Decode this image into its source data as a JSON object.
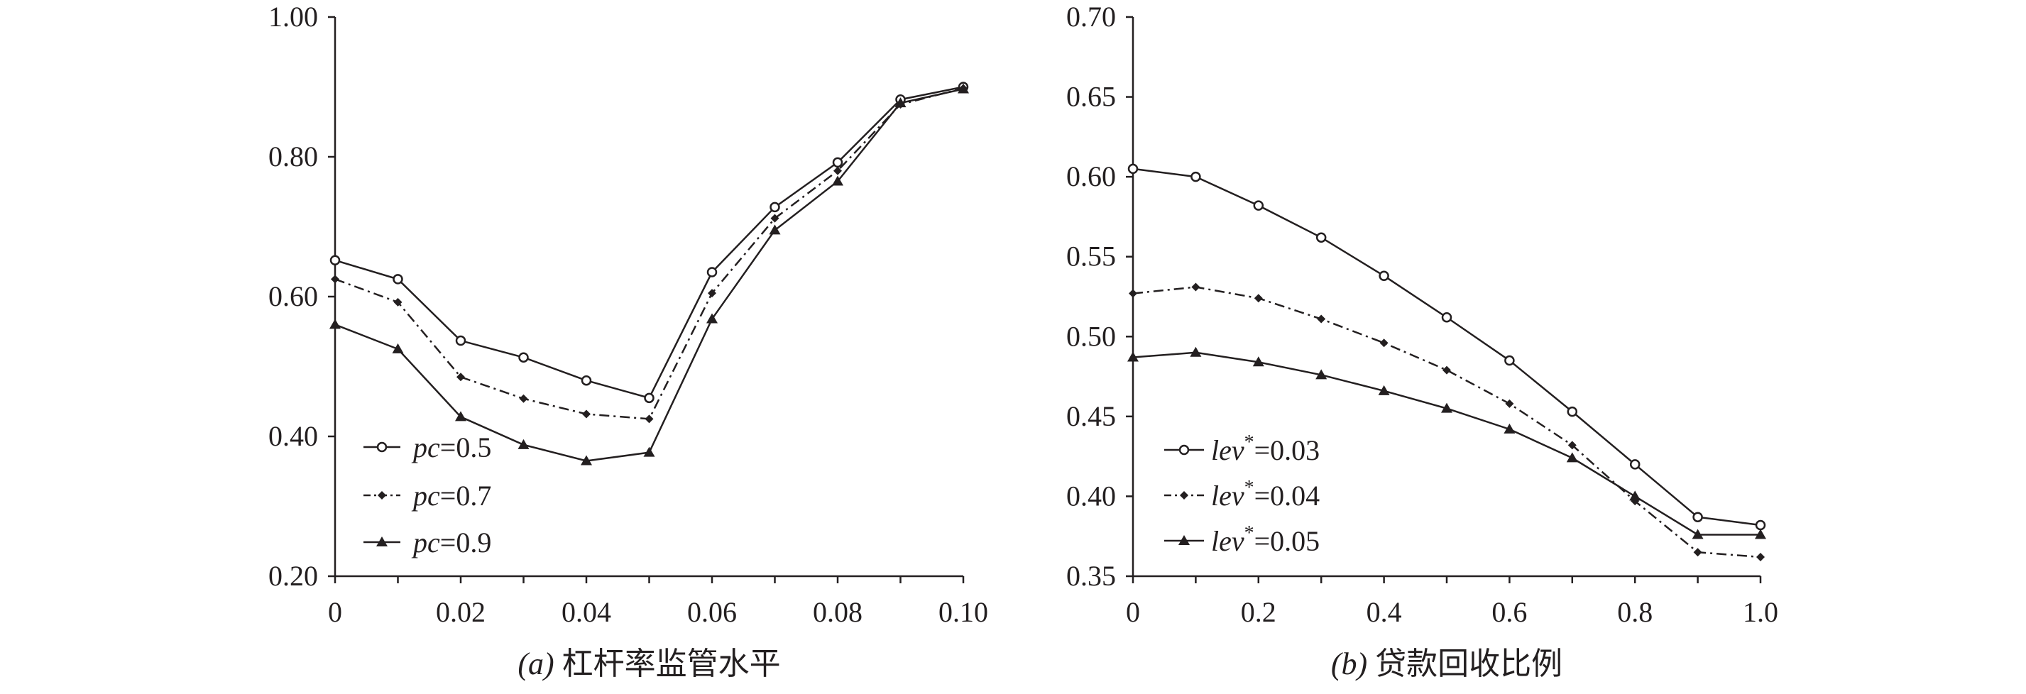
{
  "chart_data": [
    {
      "type": "line",
      "caption_prefix": "(a)",
      "caption_text": "杠杆率监管水平",
      "x": [
        0,
        0.01,
        0.02,
        0.03,
        0.04,
        0.05,
        0.06,
        0.07,
        0.08,
        0.09,
        0.1
      ],
      "xticks": [
        0,
        0.02,
        0.04,
        0.06,
        0.08,
        0.1
      ],
      "xtick_labels": [
        "0",
        "0.02",
        "0.04",
        "0.06",
        "0.08",
        "0.10"
      ],
      "xlim": [
        0,
        0.1
      ],
      "yticks": [
        0.2,
        0.4,
        0.6,
        0.8,
        1.0
      ],
      "ytick_labels": [
        "0.20",
        "0.40",
        "0.60",
        "0.80",
        "1.00"
      ],
      "ylim": [
        0.2,
        1.0
      ],
      "legend_position": "bottom-left",
      "series": [
        {
          "name": "pc",
          "value_label": "=0.5",
          "marker": "circle",
          "dash": "solid",
          "values": [
            0.652,
            0.625,
            0.537,
            0.513,
            0.48,
            0.455,
            0.635,
            0.728,
            0.792,
            0.882,
            0.9
          ]
        },
        {
          "name": "pc",
          "value_label": "=0.7",
          "marker": "diamond",
          "dash": "dashdot",
          "values": [
            0.625,
            0.592,
            0.485,
            0.454,
            0.432,
            0.425,
            0.605,
            0.712,
            0.78,
            0.875,
            0.898
          ]
        },
        {
          "name": "pc",
          "value_label": "=0.9",
          "marker": "triangle",
          "dash": "solid",
          "values": [
            0.56,
            0.525,
            0.428,
            0.388,
            0.365,
            0.377,
            0.568,
            0.695,
            0.765,
            0.877,
            0.897
          ]
        }
      ]
    },
    {
      "type": "line",
      "caption_prefix": "(b)",
      "caption_text": "贷款回收比例",
      "x": [
        0,
        0.1,
        0.2,
        0.3,
        0.4,
        0.5,
        0.6,
        0.7,
        0.8,
        0.9,
        1.0
      ],
      "xticks": [
        0,
        0.2,
        0.4,
        0.6,
        0.8,
        1.0
      ],
      "xtick_labels": [
        "0",
        "0.2",
        "0.4",
        "0.6",
        "0.8",
        "1.0"
      ],
      "xlim": [
        0,
        1.0
      ],
      "yticks": [
        0.35,
        0.4,
        0.45,
        0.5,
        0.55,
        0.6,
        0.65,
        0.7
      ],
      "ytick_labels": [
        "0.35",
        "0.40",
        "0.45",
        "0.50",
        "0.55",
        "0.60",
        "0.65",
        "0.70"
      ],
      "ylim": [
        0.35,
        0.7
      ],
      "legend_position": "bottom-left",
      "series": [
        {
          "name": "lev",
          "sup": "*",
          "value_label": "=0.03",
          "marker": "circle",
          "dash": "solid",
          "values": [
            0.605,
            0.6,
            0.582,
            0.562,
            0.538,
            0.512,
            0.485,
            0.453,
            0.42,
            0.387,
            0.382
          ]
        },
        {
          "name": "lev",
          "sup": "*",
          "value_label": "=0.04",
          "marker": "diamond",
          "dash": "dashdot",
          "values": [
            0.527,
            0.531,
            0.524,
            0.511,
            0.496,
            0.479,
            0.458,
            0.432,
            0.397,
            0.365,
            0.362
          ]
        },
        {
          "name": "lev",
          "sup": "*",
          "value_label": "=0.05",
          "marker": "triangle",
          "dash": "solid",
          "values": [
            0.487,
            0.49,
            0.484,
            0.476,
            0.466,
            0.455,
            0.442,
            0.424,
            0.4,
            0.376,
            0.376
          ]
        }
      ]
    }
  ]
}
